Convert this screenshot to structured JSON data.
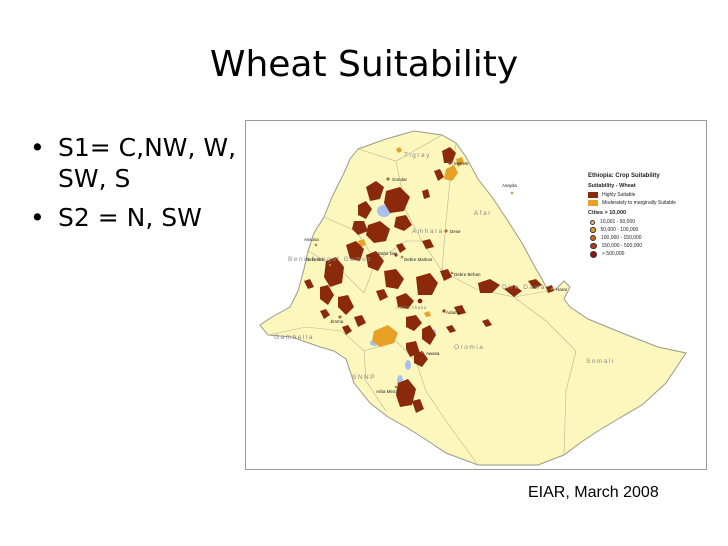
{
  "slide": {
    "title": "Wheat Suitability",
    "bullets": [
      "S1= C,NW, W, SW, S",
      "S2 = N, SW"
    ],
    "credit": "EIAR, March 2008"
  },
  "map": {
    "legend": {
      "title": "Ethiopia: Crop Suitability",
      "suitability_label": "Suitability - Wheat",
      "suitability_items": [
        {
          "label": "Highly Suitable",
          "color": "#8b2a0a"
        },
        {
          "label": "Moderately to marginally Suitable",
          "color": "#e8a026"
        }
      ],
      "cities_label": "Cities > 10,000",
      "city_classes": [
        {
          "label": "10,001 - 50,000",
          "color": "#f5c96a"
        },
        {
          "label": "50,000 - 100,000",
          "color": "#e8a026"
        },
        {
          "label": "100,000 - 150,000",
          "color": "#d9681c"
        },
        {
          "label": "150,000 - 500,000",
          "color": "#c0361a"
        },
        {
          "label": "> 500,000",
          "color": "#9c0f0f"
        }
      ]
    },
    "regions": [
      "Tigray",
      "Afar",
      "Amhara",
      "Benishangul Gumuz",
      "Dire Dawa",
      "Gambella",
      "Oromia",
      "Somali",
      "SNNP",
      "Addis Ababa"
    ],
    "cities": [
      "Mekele",
      "Gondar",
      "Asayita",
      "Dese",
      "Bahir Dar",
      "Nekemte",
      "Debre Markos",
      "Debre Birhan",
      "Adama",
      "Jimma",
      "Awasa",
      "Arba Minch",
      "Harar",
      "Assosa"
    ],
    "colors": {
      "land": "#fcf7bd",
      "border": "#9a9a8a",
      "highly_suitable": "#8b2a0a",
      "moderately_suitable": "#e8a026",
      "water": "#a8c0f0"
    }
  }
}
